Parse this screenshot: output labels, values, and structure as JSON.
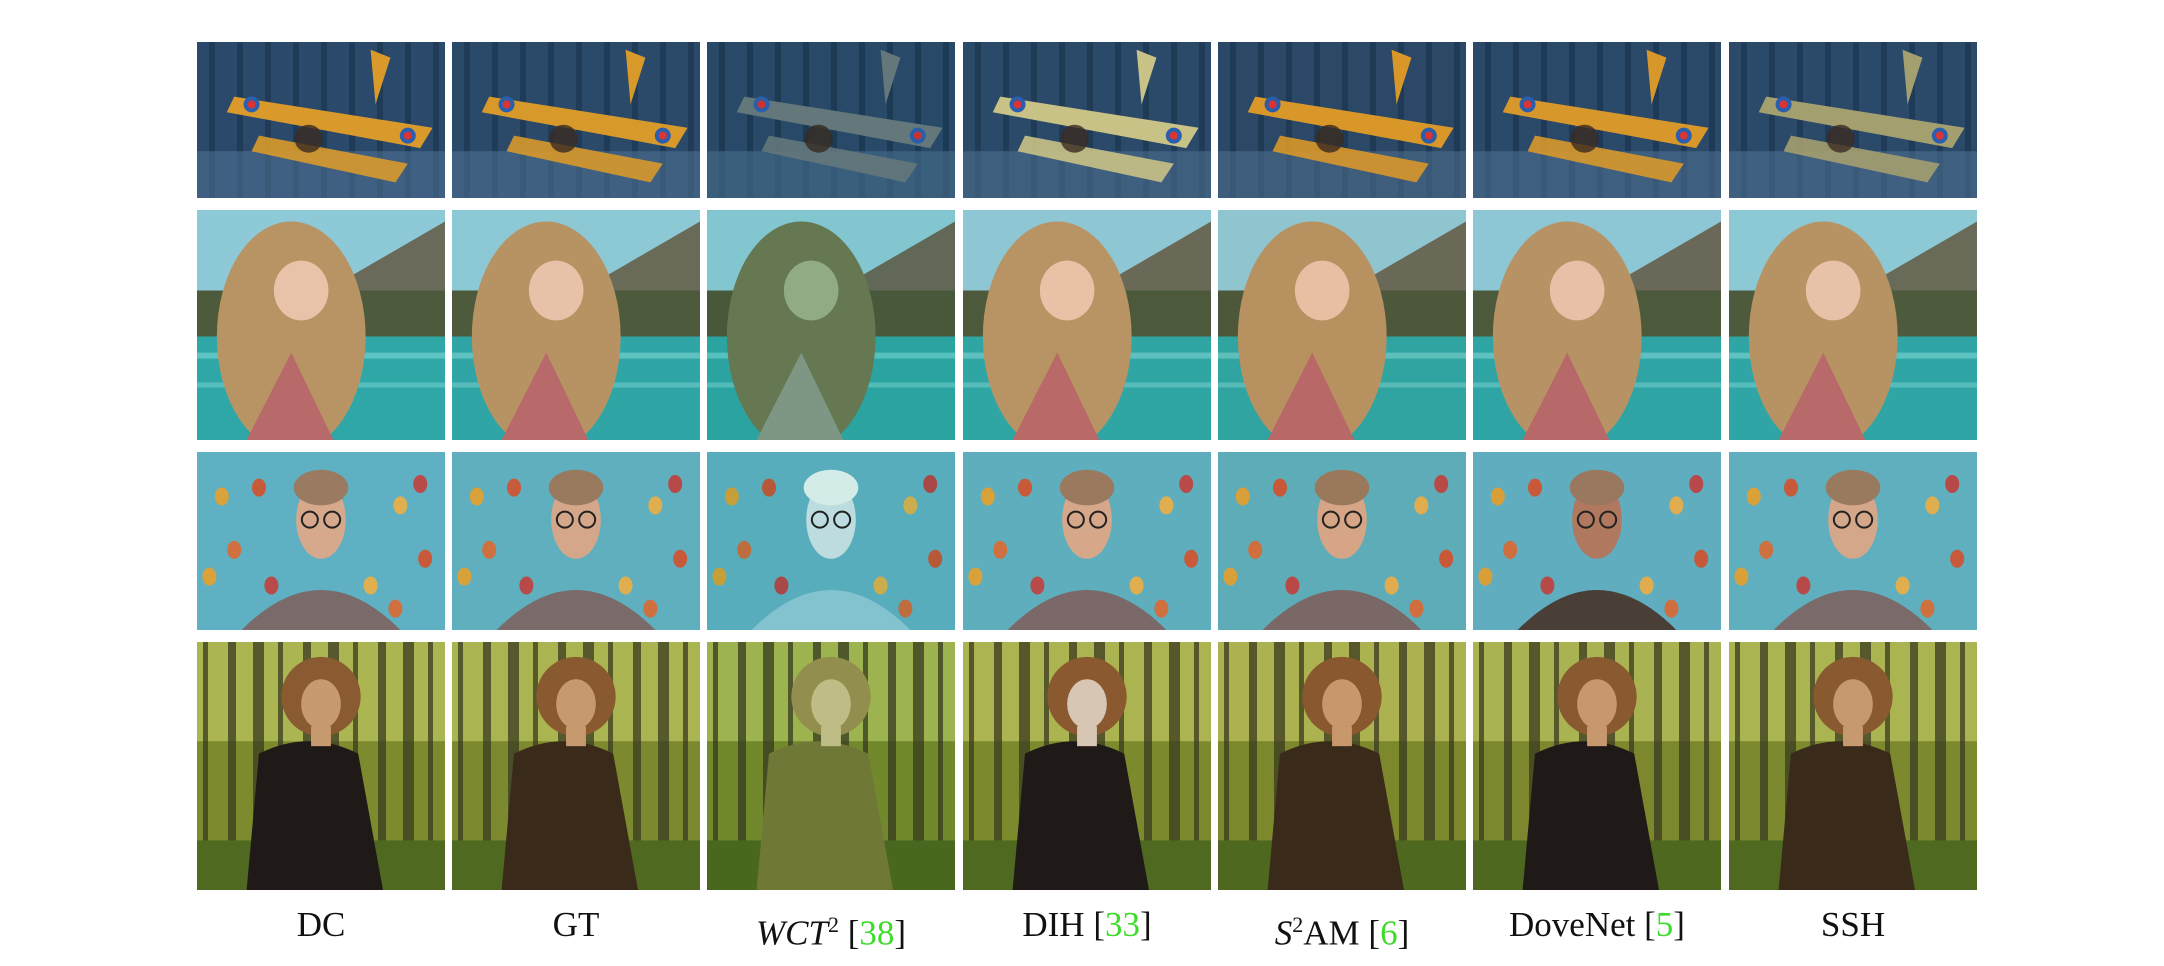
{
  "figure": {
    "columns": [
      {
        "id": "dc",
        "label": "DC",
        "ref": ""
      },
      {
        "id": "gt",
        "label": "GT",
        "ref": ""
      },
      {
        "id": "wct2",
        "label_italic": "WCT",
        "label_sup": "2",
        "label": "",
        "ref": "38"
      },
      {
        "id": "dih",
        "label": "DIH",
        "ref": "33"
      },
      {
        "id": "s2am",
        "label_italic": "S",
        "label_sup": "2",
        "label": "AM",
        "ref": "6"
      },
      {
        "id": "dovenet",
        "label": "DoveNet",
        "ref": "5"
      },
      {
        "id": "ssh",
        "label": "SSH",
        "ref": ""
      }
    ],
    "rows": [
      {
        "id": "airplane"
      },
      {
        "id": "woman-lake"
      },
      {
        "id": "man-balloons"
      },
      {
        "id": "woman-forest"
      }
    ],
    "colors": {
      "ref_green": "#3ddc2a",
      "airplane_bg": "#2b4a6b",
      "lake_sky": "#8ec9d8",
      "balloon_sky": "#5fb0c2",
      "forest_bg": "#7d8a2e"
    }
  }
}
